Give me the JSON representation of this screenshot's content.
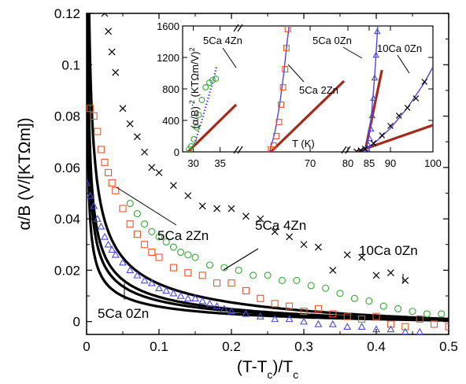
{
  "chart_data": [
    {
      "type": "scatter",
      "xlabel": "(T-T_c)/T_c",
      "ylabel": "α/B (V/[KTΩm])",
      "xlim": [
        0,
        0.5
      ],
      "ylim": [
        -0.005,
        0.12
      ],
      "x_ticks": [
        "0",
        "0.1",
        "0.2",
        "0.3",
        "0.4",
        "0.5"
      ],
      "y_ticks": [
        "0",
        "0.02",
        "0.04",
        "0.06",
        "0.08",
        "0.1",
        "0.12"
      ],
      "colors": {
        "10Ca 0Zn": "#000000",
        "5Ca 4Zn": "#33aa33",
        "5Ca 2Zn": "#e8562e",
        "5Ca 0Zn": "#4a4ae0",
        "fit": "#000000"
      },
      "series": [
        {
          "name": "10Ca 0Zn",
          "marker": "x",
          "fit_coef": 0.0078,
          "x": [
            0.025,
            0.03,
            0.035,
            0.04,
            0.05,
            0.06,
            0.07,
            0.08,
            0.09,
            0.1,
            0.12,
            0.14,
            0.16,
            0.18,
            0.2,
            0.22,
            0.24,
            0.26,
            0.28,
            0.3,
            0.32,
            0.34,
            0.36,
            0.38,
            0.4,
            0.42,
            0.44
          ],
          "y": [
            0.12,
            0.113,
            0.105,
            0.097,
            0.083,
            0.077,
            0.072,
            0.066,
            0.06,
            0.058,
            0.053,
            0.049,
            0.045,
            0.044,
            0.044,
            0.041,
            0.04,
            0.035,
            0.033,
            0.03,
            0.029,
            0.02,
            0.026,
            0.025,
            0.018,
            0.019,
            0.016
          ]
        },
        {
          "name": "5Ca 4Zn",
          "marker": "circle",
          "fit_coef": 0.0051,
          "x": [
            0.06,
            0.07,
            0.08,
            0.09,
            0.1,
            0.11,
            0.12,
            0.13,
            0.14,
            0.15,
            0.17,
            0.19,
            0.21,
            0.23,
            0.25,
            0.27,
            0.29,
            0.31,
            0.33,
            0.35,
            0.37,
            0.39,
            0.41,
            0.43,
            0.45,
            0.47,
            0.49
          ],
          "y": [
            0.046,
            0.042,
            0.038,
            0.035,
            0.033,
            0.031,
            0.029,
            0.027,
            0.026,
            0.025,
            0.022,
            0.021,
            0.02,
            0.018,
            0.018,
            0.016,
            0.016,
            0.014,
            0.013,
            0.011,
            0.009,
            0.008,
            0.006,
            0.005,
            0.004,
            0.003,
            0.003
          ]
        },
        {
          "name": "5Ca 2Zn",
          "marker": "square",
          "fit_coef": 0.0043,
          "x": [
            0.005,
            0.01,
            0.015,
            0.02,
            0.025,
            0.03,
            0.035,
            0.04,
            0.05,
            0.06,
            0.07,
            0.08,
            0.09,
            0.1,
            0.12,
            0.14,
            0.16,
            0.18,
            0.2,
            0.22,
            0.24,
            0.26,
            0.28,
            0.3,
            0.32,
            0.34,
            0.36,
            0.38,
            0.4,
            0.42,
            0.44,
            0.46,
            0.48,
            0.5
          ],
          "y": [
            0.083,
            0.08,
            0.074,
            0.067,
            0.062,
            0.058,
            0.054,
            0.051,
            0.044,
            0.038,
            0.034,
            0.03,
            0.027,
            0.025,
            0.021,
            0.019,
            0.018,
            0.015,
            0.015,
            0.012,
            0.009,
            0.007,
            0.006,
            0.004,
            0.005,
            0.003,
            0.002,
            0.001,
            0.002,
            -0.001,
            -0.002,
            0.001,
            -0.001,
            -0.002
          ]
        },
        {
          "name": "5Ca 0Zn",
          "marker": "triangle",
          "fit_coef": 0.0031,
          "x": [
            0.0,
            0.005,
            0.01,
            0.015,
            0.02,
            0.025,
            0.03,
            0.035,
            0.04,
            0.05,
            0.06,
            0.07,
            0.08,
            0.09,
            0.1,
            0.11,
            0.12,
            0.13,
            0.14,
            0.15,
            0.16,
            0.17,
            0.18,
            0.19,
            0.2,
            0.22,
            0.24,
            0.26,
            0.28,
            0.3,
            0.32,
            0.34,
            0.36,
            0.38,
            0.4,
            0.42,
            0.44,
            0.46
          ],
          "y": [
            0.054,
            0.049,
            0.045,
            0.04,
            0.037,
            0.033,
            0.03,
            0.028,
            0.026,
            0.023,
            0.02,
            0.018,
            0.016,
            0.015,
            0.013,
            0.012,
            0.011,
            0.01,
            0.009,
            0.009,
            0.008,
            0.007,
            0.006,
            0.005,
            0.004,
            0.003,
            0.002,
            0.001,
            0.001,
            0.0,
            -0.001,
            -0.001,
            -0.002,
            -0.002,
            -0.003,
            -0.003,
            -0.004,
            -0.004
          ]
        }
      ],
      "labels": [
        {
          "text": "10Ca 0Zn",
          "series": "10Ca 0Zn"
        },
        {
          "text": "5Ca 4Zn",
          "series": "5Ca 4Zn"
        },
        {
          "text": "5Ca 2Zn",
          "series": "5Ca 2Zn"
        },
        {
          "text": "5Ca 0Zn",
          "series": "5Ca 0Zn"
        }
      ]
    },
    {
      "type": "scatter",
      "inset": true,
      "xlabel": "T (K)",
      "ylabel": "(α/B)^-2 (KTΩm/V)^2",
      "ylim": [
        0,
        1600
      ],
      "y_ticks": [
        "0",
        "400",
        "800",
        "1200",
        "1600"
      ],
      "x_ticks": [
        "30",
        "35",
        "70",
        "80",
        "85",
        "90",
        "100"
      ],
      "axis_break": true,
      "colors": {
        "linear_fit": "#a52a1a",
        "curve_fit": "#5c3fd6"
      },
      "series": [
        {
          "name": "5Ca 4Zn",
          "marker": "circle",
          "x": [
            29.2,
            29.6,
            30.1,
            30.6,
            31.0,
            31.6,
            32.3,
            33.0,
            33.6,
            34.2
          ],
          "y": [
            35,
            70,
            160,
            310,
            470,
            660,
            820,
            880,
            910,
            930
          ]
        },
        {
          "name": "5Ca 2Zn",
          "marker": "square",
          "x": [
            64.2,
            64.6,
            65.0,
            65.4,
            65.7,
            66.0,
            66.3,
            66.5,
            66.7
          ],
          "y": [
            30,
            80,
            200,
            380,
            600,
            820,
            1050,
            1320,
            1560
          ]
        },
        {
          "name": "5Ca 0Zn",
          "marker": "triangle",
          "x": [
            84.2,
            84.5,
            84.8,
            85.1,
            85.4,
            85.7,
            86.0,
            86.3,
            86.6,
            86.9
          ],
          "y": [
            10,
            40,
            90,
            170,
            290,
            460,
            680,
            940,
            1230,
            1530
          ]
        },
        {
          "name": "10Ca 0Zn",
          "marker": "x",
          "x": [
            82.0,
            83.0,
            84.0,
            86.0,
            88.0,
            90.0,
            92.0,
            94.0,
            96.0,
            98.0
          ],
          "y": [
            5,
            20,
            40,
            110,
            210,
            330,
            460,
            560,
            680,
            890
          ]
        }
      ],
      "labels": [
        {
          "text": "5Ca 4Zn",
          "series": "5Ca 4Zn"
        },
        {
          "text": "5Ca 2Zn",
          "series": "5Ca 2Zn"
        },
        {
          "text": "5Ca 0Zn",
          "series": "5Ca 0Zn"
        },
        {
          "text": "10Ca 0Zn",
          "series": "10Ca 0Zn"
        }
      ]
    }
  ]
}
